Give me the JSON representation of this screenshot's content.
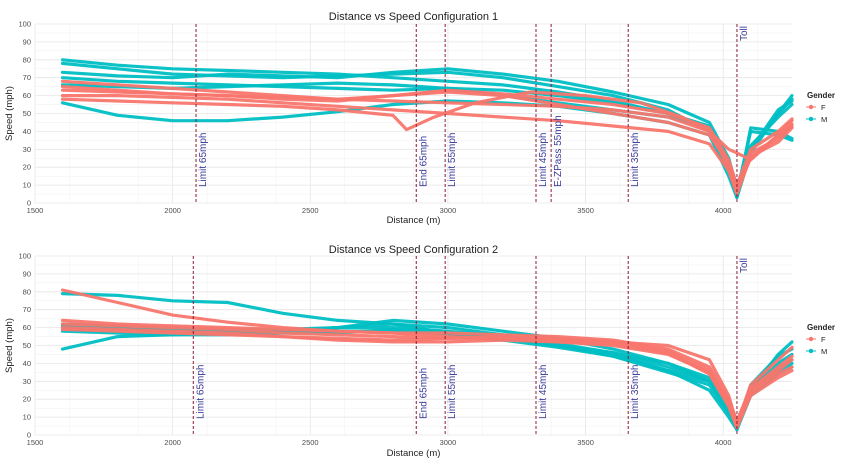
{
  "chart_data": [
    {
      "type": "line",
      "title": "Distance vs Speed Configuration 1",
      "xlabel": "Distance (m)",
      "ylabel": "Speed (mph)",
      "xlim": [
        1500,
        4250
      ],
      "ylim": [
        0,
        100
      ],
      "x_ticks": [
        "1500",
        "2000",
        "2500",
        "3000",
        "3500",
        "4000"
      ],
      "y_ticks": [
        "0",
        "10",
        "20",
        "30",
        "40",
        "50",
        "60",
        "70",
        "80",
        "90",
        "100"
      ],
      "grid": true,
      "legend": {
        "title": "Gender",
        "position": "right",
        "entries": [
          {
            "label": "F",
            "color": "#F8766D"
          },
          {
            "label": "M",
            "color": "#00BFC4"
          }
        ]
      },
      "annotations": [
        {
          "x": 2085,
          "label": "Limit 65mph"
        },
        {
          "x": 2885,
          "label": "End 65mph"
        },
        {
          "x": 2990,
          "label": "Limit 55mph"
        },
        {
          "x": 3320,
          "label": "Limit 45mph"
        },
        {
          "x": 3375,
          "label": "E-ZPass 55mph"
        },
        {
          "x": 3655,
          "label": "Limit 35mph"
        },
        {
          "x": 4050,
          "label": "Toll"
        }
      ],
      "series": [
        {
          "group": "M",
          "color": "#00BFC4",
          "x": [
            1600,
            1800,
            2000,
            2200,
            2400,
            2600,
            2800,
            3000,
            3200,
            3400,
            3600,
            3800,
            3950,
            4020,
            4050,
            4100,
            4200,
            4250
          ],
          "y": [
            80,
            77,
            75,
            74,
            73,
            72,
            70,
            68,
            66,
            62,
            57,
            50,
            42,
            20,
            5,
            30,
            50,
            58
          ]
        },
        {
          "group": "M",
          "color": "#00BFC4",
          "x": [
            1600,
            1800,
            2000,
            2200,
            2400,
            2600,
            2800,
            3000,
            3200,
            3400,
            3600,
            3800,
            3950,
            4020,
            4050,
            4100,
            4200,
            4250
          ],
          "y": [
            78,
            75,
            72,
            71,
            70,
            71,
            72,
            73,
            70,
            65,
            60,
            52,
            40,
            18,
            3,
            28,
            50,
            60
          ]
        },
        {
          "group": "M",
          "color": "#00BFC4",
          "x": [
            1600,
            1800,
            2000,
            2200,
            2400,
            2600,
            2800,
            3000,
            3200,
            3400,
            3600,
            3800,
            3950,
            4020,
            4050,
            4100,
            4200,
            4250
          ],
          "y": [
            73,
            71,
            70,
            72,
            71,
            70,
            73,
            75,
            72,
            68,
            62,
            55,
            45,
            25,
            8,
            32,
            48,
            55
          ]
        },
        {
          "group": "M",
          "color": "#00BFC4",
          "x": [
            1600,
            1800,
            2000,
            2200,
            2400,
            2600,
            2800,
            3000,
            3200,
            3400,
            3600,
            3800,
            3950,
            4020,
            4050,
            4100,
            4200,
            4250
          ],
          "y": [
            70,
            68,
            67,
            66,
            65,
            64,
            63,
            64,
            63,
            60,
            56,
            50,
            43,
            22,
            4,
            30,
            52,
            57
          ]
        },
        {
          "group": "M",
          "color": "#00BFC4",
          "x": [
            1600,
            1800,
            2000,
            2200,
            2400,
            2600,
            2800,
            3000,
            3200,
            3400,
            3600,
            3800,
            3950,
            4020,
            4050,
            4100,
            4200,
            4250
          ],
          "y": [
            66,
            65,
            64,
            65,
            66,
            67,
            66,
            64,
            60,
            56,
            52,
            48,
            42,
            25,
            6,
            40,
            38,
            35
          ]
        },
        {
          "group": "M",
          "color": "#00BFC4",
          "x": [
            1600,
            1800,
            2000,
            2200,
            2400,
            2600,
            2800,
            3000,
            3200,
            3400,
            3600,
            3800,
            3950,
            4020,
            4050,
            4100,
            4200,
            4250
          ],
          "y": [
            56,
            49,
            46,
            46,
            48,
            51,
            55,
            57,
            56,
            54,
            50,
            45,
            38,
            15,
            3,
            42,
            40,
            36
          ]
        },
        {
          "group": "F",
          "color": "#F8766D",
          "x": [
            1600,
            1800,
            2000,
            2200,
            2400,
            2600,
            2800,
            3000,
            3200,
            3400,
            3600,
            3800,
            3950,
            4020,
            4050,
            4100,
            4200,
            4250
          ],
          "y": [
            68,
            66,
            64,
            62,
            60,
            58,
            60,
            62,
            60,
            55,
            50,
            45,
            38,
            22,
            8,
            25,
            38,
            46
          ]
        },
        {
          "group": "F",
          "color": "#F8766D",
          "x": [
            1600,
            1800,
            2000,
            2200,
            2400,
            2600,
            2800,
            3000,
            3200,
            3400,
            3600,
            3800,
            3950,
            4020,
            4050,
            4100,
            4200,
            4250
          ],
          "y": [
            63,
            62,
            61,
            60,
            59,
            58,
            57,
            56,
            55,
            54,
            52,
            48,
            40,
            20,
            6,
            28,
            36,
            44
          ]
        },
        {
          "group": "F",
          "color": "#F8766D",
          "x": [
            1600,
            1800,
            2000,
            2200,
            2400,
            2600,
            2800,
            3000,
            3200,
            3400,
            3600,
            3800,
            3950,
            4020,
            4050,
            4100,
            4200,
            4250
          ],
          "y": [
            60,
            60,
            59,
            58,
            56,
            54,
            52,
            50,
            48,
            46,
            43,
            40,
            33,
            18,
            5,
            26,
            34,
            42
          ]
        },
        {
          "group": "F",
          "color": "#F8766D",
          "x": [
            1600,
            1800,
            2000,
            2200,
            2400,
            2600,
            2800,
            2850,
            2950,
            3100,
            3300,
            3500,
            3700,
            3850,
            3950,
            4020,
            4050,
            4100,
            4200,
            4250
          ],
          "y": [
            58,
            57,
            56,
            55,
            54,
            52,
            49,
            41,
            48,
            56,
            62,
            60,
            56,
            48,
            40,
            30,
            28,
            24,
            38,
            43
          ]
        },
        {
          "group": "F",
          "color": "#F8766D",
          "x": [
            1600,
            1800,
            2000,
            2200,
            2400,
            2600,
            2800,
            3000,
            3200,
            3400,
            3600,
            3800,
            3950,
            4020,
            4050,
            4100,
            4200,
            4250
          ],
          "y": [
            65,
            63,
            61,
            60,
            58,
            57,
            60,
            63,
            61,
            58,
            55,
            50,
            42,
            24,
            10,
            30,
            40,
            47
          ]
        }
      ]
    },
    {
      "type": "line",
      "title": "Distance vs Speed Configuration 2",
      "xlabel": "Distance (m)",
      "ylabel": "Speed (mph)",
      "xlim": [
        1500,
        4250
      ],
      "ylim": [
        0,
        100
      ],
      "x_ticks": [
        "1500",
        "2000",
        "2500",
        "3000",
        "3500",
        "4000"
      ],
      "y_ticks": [
        "0",
        "10",
        "20",
        "30",
        "40",
        "50",
        "60",
        "70",
        "80",
        "90",
        "100"
      ],
      "grid": true,
      "legend": {
        "title": "Gender",
        "position": "right",
        "entries": [
          {
            "label": "F",
            "color": "#F8766D"
          },
          {
            "label": "M",
            "color": "#00BFC4"
          }
        ]
      },
      "annotations": [
        {
          "x": 2075,
          "label": "Limit 65mph"
        },
        {
          "x": 2885,
          "label": "End 65mph"
        },
        {
          "x": 2990,
          "label": "Limit 55mph"
        },
        {
          "x": 3320,
          "label": "Limit 45mph"
        },
        {
          "x": 3655,
          "label": "Limit 35mph"
        },
        {
          "x": 4050,
          "label": "Toll"
        }
      ],
      "series": [
        {
          "group": "M",
          "color": "#00BFC4",
          "x": [
            1600,
            1800,
            2000,
            2200,
            2400,
            2600,
            2800,
            3000,
            3200,
            3400,
            3600,
            3800,
            3950,
            4020,
            4050,
            4100,
            4200,
            4250
          ],
          "y": [
            79,
            78,
            75,
            74,
            68,
            64,
            62,
            57,
            54,
            50,
            46,
            40,
            32,
            15,
            4,
            25,
            45,
            52
          ]
        },
        {
          "group": "M",
          "color": "#00BFC4",
          "x": [
            1600,
            1800,
            2000,
            2200,
            2400,
            2600,
            2800,
            3000,
            3200,
            3400,
            3600,
            3800,
            3950,
            4020,
            4050,
            4100,
            4200,
            4250
          ],
          "y": [
            48,
            55,
            56,
            57,
            58,
            60,
            62,
            60,
            56,
            50,
            44,
            36,
            30,
            14,
            3,
            28,
            44,
            48
          ]
        },
        {
          "group": "M",
          "color": "#00BFC4",
          "x": [
            1600,
            1800,
            2000,
            2200,
            2400,
            2600,
            2800,
            3000,
            3200,
            3400,
            3600,
            3800,
            3950,
            4020,
            4050,
            4100,
            4200,
            4250
          ],
          "y": [
            60,
            59,
            58,
            57,
            58,
            60,
            64,
            62,
            58,
            54,
            48,
            40,
            30,
            12,
            3,
            26,
            40,
            45
          ]
        },
        {
          "group": "M",
          "color": "#00BFC4",
          "x": [
            1600,
            1800,
            2000,
            2200,
            2400,
            2600,
            2800,
            3000,
            3200,
            3400,
            3600,
            3800,
            3950,
            4020,
            4050,
            4100,
            4200,
            4250
          ],
          "y": [
            62,
            61,
            60,
            59,
            59,
            60,
            60,
            58,
            55,
            51,
            46,
            38,
            30,
            16,
            5,
            24,
            38,
            42
          ]
        },
        {
          "group": "M",
          "color": "#00BFC4",
          "x": [
            1600,
            1800,
            2000,
            2200,
            2400,
            2600,
            2800,
            3000,
            3200,
            3400,
            3600,
            3800,
            3950,
            4020,
            4050,
            4100,
            4200,
            4250
          ],
          "y": [
            58,
            57,
            56,
            56,
            57,
            58,
            58,
            56,
            53,
            49,
            44,
            35,
            28,
            12,
            4,
            25,
            36,
            40
          ]
        },
        {
          "group": "M",
          "color": "#00BFC4",
          "x": [
            1600,
            1800,
            2000,
            2200,
            2400,
            2600,
            2800,
            3000,
            3200,
            3400,
            3600,
            3800,
            3950,
            4020,
            4050,
            4100,
            4200,
            4250
          ],
          "y": [
            61,
            60,
            59,
            58,
            57,
            57,
            59,
            57,
            54,
            50,
            45,
            36,
            25,
            10,
            3,
            22,
            34,
            38
          ]
        },
        {
          "group": "F",
          "color": "#F8766D",
          "x": [
            1600,
            1800,
            2000,
            2200,
            2400,
            2600,
            2800,
            3000,
            3200,
            3400,
            3600,
            3800,
            3950,
            4020,
            4050,
            4100,
            4200,
            4250
          ],
          "y": [
            81,
            74,
            67,
            63,
            60,
            58,
            57,
            55,
            54,
            52,
            50,
            45,
            35,
            18,
            6,
            28,
            42,
            49
          ]
        },
        {
          "group": "F",
          "color": "#F8766D",
          "x": [
            1600,
            1800,
            2000,
            2200,
            2400,
            2600,
            2800,
            3000,
            3200,
            3400,
            3600,
            3800,
            3950,
            4020,
            4050,
            4100,
            4200,
            4250
          ],
          "y": [
            64,
            62,
            61,
            60,
            59,
            58,
            57,
            57,
            56,
            55,
            53,
            48,
            38,
            20,
            8,
            26,
            38,
            44
          ]
        },
        {
          "group": "F",
          "color": "#F8766D",
          "x": [
            1600,
            1800,
            2000,
            2200,
            2400,
            2600,
            2800,
            3000,
            3200,
            3400,
            3600,
            3800,
            3950,
            4020,
            4050,
            4100,
            4200,
            4250
          ],
          "y": [
            62,
            61,
            60,
            59,
            57,
            56,
            55,
            54,
            54,
            53,
            52,
            50,
            42,
            22,
            6,
            25,
            36,
            42
          ]
        },
        {
          "group": "F",
          "color": "#F8766D",
          "x": [
            1600,
            1800,
            2000,
            2200,
            2400,
            2600,
            2800,
            3000,
            3200,
            3400,
            3600,
            3800,
            3950,
            4020,
            4050,
            4100,
            4200,
            4250
          ],
          "y": [
            60,
            59,
            58,
            57,
            55,
            54,
            53,
            54,
            55,
            54,
            52,
            47,
            36,
            18,
            5,
            24,
            34,
            38
          ]
        },
        {
          "group": "F",
          "color": "#F8766D",
          "x": [
            1600,
            1800,
            2000,
            2200,
            2400,
            2600,
            2800,
            3000,
            3200,
            3400,
            3600,
            3800,
            3950,
            4020,
            4050,
            4100,
            4200,
            4250
          ],
          "y": [
            59,
            58,
            57,
            56,
            55,
            53,
            52,
            52,
            53,
            52,
            51,
            46,
            34,
            16,
            4,
            22,
            32,
            36
          ]
        }
      ]
    }
  ]
}
